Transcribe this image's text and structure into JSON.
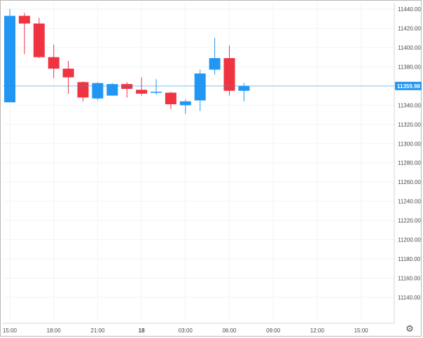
{
  "chart_data": {
    "type": "candlestick",
    "ylim": [
      11140,
      11440
    ],
    "y_ticks": [
      11440,
      11420,
      11400,
      11380,
      11360,
      11340,
      11320,
      11300,
      11280,
      11260,
      11240,
      11220,
      11200,
      11180,
      11160,
      11140
    ],
    "y_tick_labels": [
      "11440.00",
      "11420.00",
      "11400.00",
      "11380.00",
      "11360.00",
      "11340.00",
      "11320.00",
      "11300.00",
      "11280.00",
      "11260.00",
      "11240.00",
      "11220.00",
      "11200.00",
      "11180.00",
      "11160.00",
      "11140.00"
    ],
    "x_tick_labels": [
      "15:00",
      "18:00",
      "21:00",
      "18",
      "03:00",
      "06:00",
      "09:00",
      "12:00",
      "15:00"
    ],
    "x_tick_bold": [
      false,
      false,
      false,
      true,
      false,
      false,
      false,
      false,
      false
    ],
    "hours_per_slot": 1,
    "x_slots_total": 28,
    "current_price": 11359.98,
    "current_price_label": "11359.98",
    "up_color": "#2196f3",
    "down_color": "#ef3340",
    "candles": [
      {
        "o": 11343,
        "h": 11440,
        "l": 11343,
        "c": 11433
      },
      {
        "o": 11433,
        "h": 11436,
        "l": 11393,
        "c": 11425
      },
      {
        "o": 11425,
        "h": 11431,
        "l": 11389,
        "c": 11390
      },
      {
        "o": 11390,
        "h": 11403,
        "l": 11368,
        "c": 11378
      },
      {
        "o": 11378,
        "h": 11386,
        "l": 11352,
        "c": 11369
      },
      {
        "o": 11364,
        "h": 11365,
        "l": 11344,
        "c": 11348
      },
      {
        "o": 11347,
        "h": 11364,
        "l": 11345,
        "c": 11363
      },
      {
        "o": 11350,
        "h": 11363,
        "l": 11350,
        "c": 11362
      },
      {
        "o": 11362,
        "h": 11364,
        "l": 11348,
        "c": 11357
      },
      {
        "o": 11356,
        "h": 11369,
        "l": 11350,
        "c": 11352
      },
      {
        "o": 11353,
        "h": 11367,
        "l": 11351,
        "c": 11354
      },
      {
        "o": 11353,
        "h": 11354,
        "l": 11336,
        "c": 11341
      },
      {
        "o": 11340,
        "h": 11346,
        "l": 11331,
        "c": 11344
      },
      {
        "o": 11345,
        "h": 11377,
        "l": 11334,
        "c": 11373
      },
      {
        "o": 11377,
        "h": 11410,
        "l": 11372,
        "c": 11389
      },
      {
        "o": 11389,
        "h": 11402,
        "l": 11350,
        "c": 11355
      },
      {
        "o": 11355,
        "h": 11363,
        "l": 11344,
        "c": 11360
      }
    ]
  }
}
